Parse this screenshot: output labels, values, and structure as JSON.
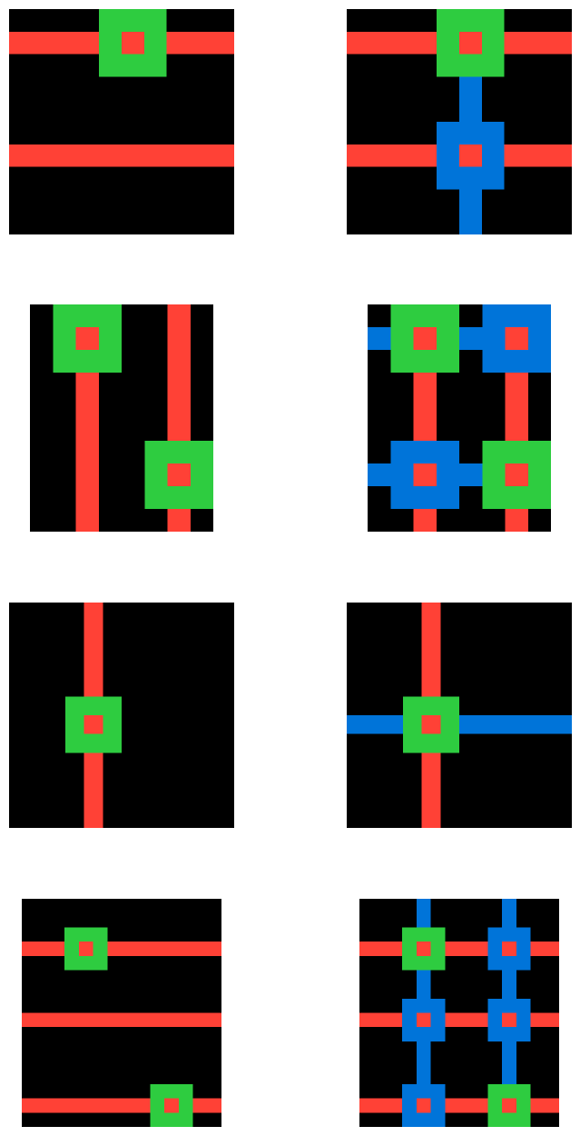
{
  "colors": {
    "background": "#000000",
    "red": "#FF4136",
    "green": "#2ECC40",
    "blue": "#0074D9"
  },
  "pairs": [
    {
      "input": {
        "rows": 10,
        "cols": 10,
        "red_rows": [
          1,
          6
        ],
        "red_cols": [],
        "blue_rows": [],
        "blue_cols": [],
        "boxes": [
          {
            "r": 1,
            "c": 5,
            "color": "green"
          }
        ]
      },
      "output": {
        "rows": 10,
        "cols": 10,
        "red_rows": [
          1,
          6
        ],
        "red_cols": [],
        "blue_rows": [],
        "blue_cols": [
          5
        ],
        "boxes": [
          {
            "r": 1,
            "c": 5,
            "color": "green"
          },
          {
            "r": 6,
            "c": 5,
            "color": "blue"
          }
        ]
      }
    },
    {
      "input": {
        "rows": 10,
        "cols": 8,
        "red_rows": [],
        "red_cols": [
          2,
          6
        ],
        "blue_rows": [],
        "blue_cols": [],
        "boxes": [
          {
            "r": 1,
            "c": 2,
            "color": "green"
          },
          {
            "r": 7,
            "c": 6,
            "color": "green"
          }
        ]
      },
      "output": {
        "rows": 10,
        "cols": 8,
        "red_rows": [],
        "red_cols": [
          2,
          6
        ],
        "blue_rows": [
          1,
          7
        ],
        "blue_cols": [],
        "boxes": [
          {
            "r": 1,
            "c": 2,
            "color": "green"
          },
          {
            "r": 1,
            "c": 6,
            "color": "blue"
          },
          {
            "r": 7,
            "c": 2,
            "color": "blue"
          },
          {
            "r": 7,
            "c": 6,
            "color": "green"
          }
        ]
      }
    },
    {
      "input": {
        "rows": 12,
        "cols": 12,
        "red_rows": [],
        "red_cols": [
          4
        ],
        "blue_rows": [],
        "blue_cols": [],
        "boxes": [
          {
            "r": 6,
            "c": 4,
            "color": "green"
          }
        ]
      },
      "output": {
        "rows": 12,
        "cols": 12,
        "red_rows": [],
        "red_cols": [
          4
        ],
        "blue_rows": [
          6
        ],
        "blue_cols": [],
        "boxes": [
          {
            "r": 6,
            "c": 4,
            "color": "green"
          }
        ]
      }
    },
    {
      "input": {
        "rows": 16,
        "cols": 14,
        "red_rows": [
          3,
          8,
          14
        ],
        "red_cols": [],
        "blue_rows": [],
        "blue_cols": [],
        "boxes": [
          {
            "r": 3,
            "c": 4,
            "color": "green"
          },
          {
            "r": 14,
            "c": 10,
            "color": "green"
          }
        ]
      },
      "output": {
        "rows": 16,
        "cols": 14,
        "red_rows": [
          3,
          8,
          14
        ],
        "red_cols": [],
        "blue_rows": [],
        "blue_cols": [
          4,
          10
        ],
        "boxes": [
          {
            "r": 3,
            "c": 4,
            "color": "green"
          },
          {
            "r": 3,
            "c": 10,
            "color": "blue"
          },
          {
            "r": 8,
            "c": 4,
            "color": "blue"
          },
          {
            "r": 8,
            "c": 10,
            "color": "blue"
          },
          {
            "r": 14,
            "c": 4,
            "color": "blue"
          },
          {
            "r": 14,
            "c": 10,
            "color": "green"
          }
        ]
      }
    }
  ]
}
